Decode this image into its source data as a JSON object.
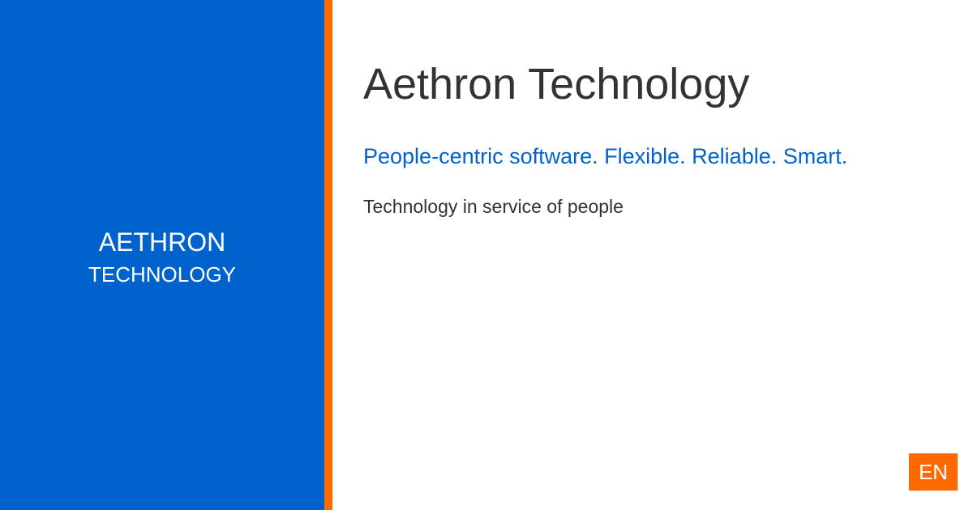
{
  "brand": {
    "line1": "AETHRON",
    "line2": "TECHNOLOGY"
  },
  "main": {
    "title": "Aethron Technology",
    "tagline": "People-centric software. Flexible. Reliable. Smart.",
    "subtext": "Technology in service of people"
  },
  "language": {
    "label": "EN"
  },
  "colors": {
    "brand_blue": "#0062cc",
    "accent_orange": "#ff6a00",
    "text_dark": "#333333"
  }
}
